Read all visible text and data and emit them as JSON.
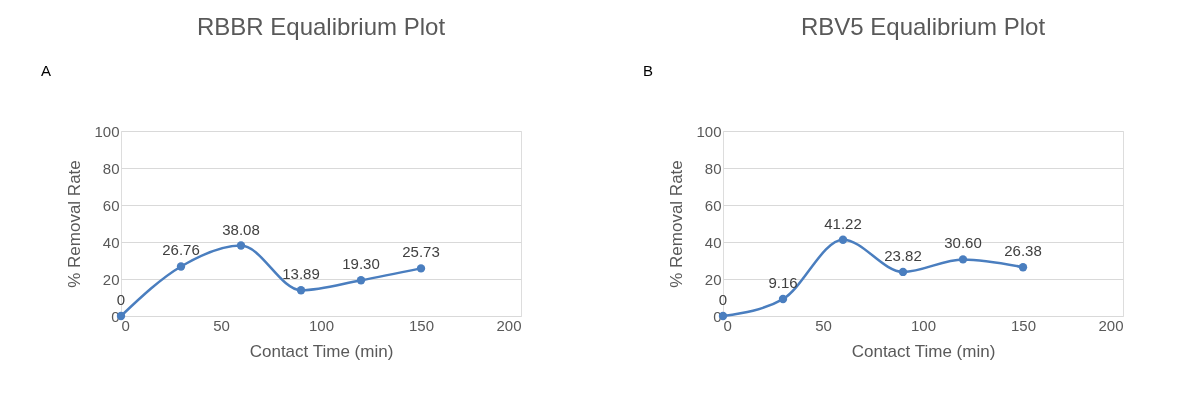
{
  "chart_data": [
    {
      "type": "line",
      "title": "RBBR Equalibrium Plot",
      "xlabel": "Contact Time (min)",
      "ylabel": "% Removal Rate",
      "annotations": [
        "A"
      ],
      "x": [
        0,
        30,
        60,
        90,
        120,
        150
      ],
      "series": [
        {
          "color": "#4a7ebf",
          "values": [
            0,
            26.76,
            38.08,
            13.89,
            19.3,
            25.73
          ],
          "value_labels": [
            "0",
            "26.76",
            "38.08",
            "13.89",
            "19.30",
            "25.73"
          ]
        }
      ],
      "xlim": [
        0,
        200
      ],
      "xticks": [
        0,
        50,
        100,
        150,
        200
      ],
      "ylim": [
        0,
        100
      ],
      "yticks": [
        0,
        20,
        40,
        60,
        80,
        100
      ],
      "grid": "y",
      "marker": "circle",
      "line_style": "solid"
    },
    {
      "type": "line",
      "title": "RBV5 Equalibrium Plot",
      "xlabel": "Contact Time (min)",
      "ylabel": "% Removal Rate",
      "annotations": [
        "B"
      ],
      "x": [
        0,
        30,
        60,
        90,
        120,
        150
      ],
      "series": [
        {
          "color": "#4a7ebf",
          "values": [
            0,
            9.16,
            41.22,
            23.82,
            30.6,
            26.38
          ],
          "value_labels": [
            "0",
            "9.16",
            "41.22",
            "23.82",
            "30.60",
            "26.38"
          ]
        }
      ],
      "xlim": [
        0,
        200
      ],
      "xticks": [
        0,
        50,
        100,
        150,
        200
      ],
      "ylim": [
        0,
        100
      ],
      "yticks": [
        0,
        20,
        40,
        60,
        80,
        100
      ],
      "grid": "y",
      "marker": "circle",
      "line_style": "solid"
    }
  ]
}
